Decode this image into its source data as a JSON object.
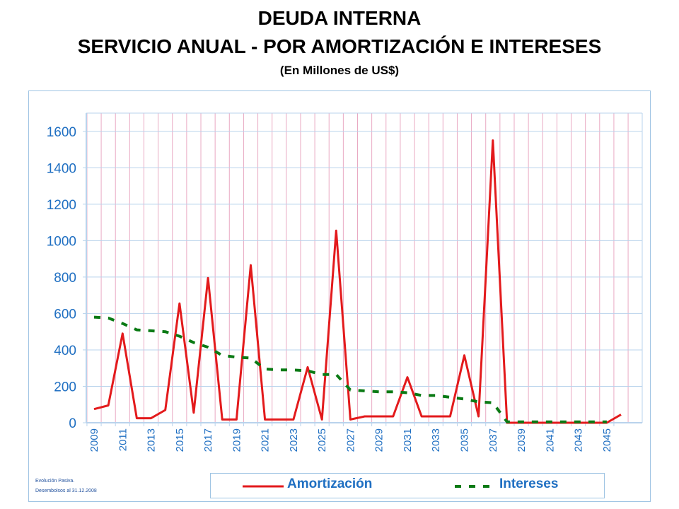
{
  "title_line1": "DEUDA INTERNA",
  "title_line2": "SERVICIO ANUAL - POR AMORTIZACIÓN E INTERESES",
  "title_line3": "(En Millones de US$)",
  "footnote_line1": "Evolución Pasiva.",
  "footnote_line2": "Desembolsos al 31.12.2008",
  "colors": {
    "amortizacion": "#e31a1c",
    "intereses": "#0a7a14",
    "axis_text": "#1f6fc2",
    "grid_h": "#b9d3ec",
    "grid_v": "#e9a9c3"
  },
  "chart_data": {
    "type": "line",
    "x": [
      2009,
      2010,
      2011,
      2012,
      2013,
      2014,
      2015,
      2016,
      2017,
      2018,
      2019,
      2020,
      2021,
      2022,
      2023,
      2024,
      2025,
      2026,
      2027,
      2028,
      2029,
      2030,
      2031,
      2032,
      2033,
      2034,
      2035,
      2036,
      2037,
      2038,
      2039,
      2040,
      2041,
      2042,
      2043,
      2044,
      2045,
      2046
    ],
    "x_tick_labels": [
      "2009",
      "2011",
      "2013",
      "2015",
      "2017",
      "2019",
      "2021",
      "2023",
      "2025",
      "2027",
      "2029",
      "2031",
      "2033",
      "2035",
      "2037",
      "2039",
      "2041",
      "2043",
      "2045"
    ],
    "ylim": [
      0,
      1700
    ],
    "y_ticks": [
      0,
      200,
      400,
      600,
      800,
      1000,
      1200,
      1400,
      1600
    ],
    "grid": true,
    "legend_position": "bottom",
    "series": [
      {
        "name": "Amortización",
        "style": "solid",
        "values": [
          75,
          95,
          490,
          25,
          25,
          70,
          655,
          55,
          795,
          18,
          18,
          865,
          18,
          18,
          18,
          305,
          18,
          1055,
          18,
          35,
          35,
          35,
          250,
          35,
          35,
          35,
          370,
          35,
          1550,
          0,
          0,
          0,
          0,
          0,
          0,
          0,
          0,
          45
        ]
      },
      {
        "name": "Intereses",
        "style": "dashed",
        "values": [
          580,
          575,
          545,
          510,
          505,
          500,
          475,
          440,
          415,
          370,
          360,
          355,
          295,
          290,
          290,
          285,
          265,
          265,
          180,
          175,
          170,
          170,
          165,
          150,
          150,
          140,
          130,
          115,
          110,
          5,
          5,
          5,
          5,
          5,
          5,
          5,
          5,
          null
        ]
      }
    ]
  }
}
